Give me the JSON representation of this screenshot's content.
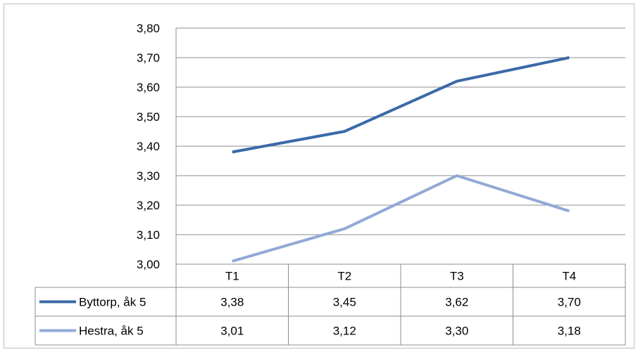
{
  "chart_data": {
    "type": "line",
    "title": "",
    "xlabel": "",
    "ylabel": "",
    "categories": [
      "T1",
      "T2",
      "T3",
      "T4"
    ],
    "ylim": [
      3.0,
      3.8
    ],
    "yticks": [
      "3,00",
      "3,10",
      "3,20",
      "3,30",
      "3,40",
      "3,50",
      "3,60",
      "3,70",
      "3,80"
    ],
    "grid": true,
    "legend": "data-table",
    "series": [
      {
        "name": "Byttorp, åk 5",
        "values": [
          3.38,
          3.45,
          3.62,
          3.7
        ],
        "labels": [
          "3,38",
          "3,45",
          "3,62",
          "3,70"
        ],
        "color": "#3a69a8"
      },
      {
        "name": "Hestra, åk 5",
        "values": [
          3.01,
          3.12,
          3.3,
          3.18
        ],
        "labels": [
          "3,01",
          "3,12",
          "3,30",
          "3,18"
        ],
        "color": "#91a9d6"
      }
    ]
  }
}
